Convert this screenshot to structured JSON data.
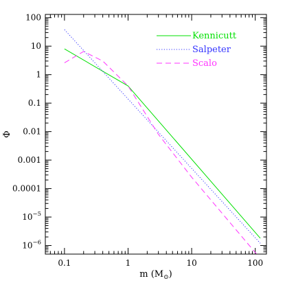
{
  "chart_data": {
    "type": "line",
    "title": "",
    "xlabel": {
      "main": "m (M",
      "subscript": "⊙",
      "close": ")"
    },
    "ylabel": "Φ",
    "xscale": "log",
    "yscale": "log",
    "xlim": [
      0.05,
      150
    ],
    "ylim": [
      5e-07,
      130
    ],
    "grid": false,
    "legend_position": "top-right",
    "x_ticks": [
      {
        "value": 0.1,
        "label": "0.1"
      },
      {
        "value": 1,
        "label": "1"
      },
      {
        "value": 10,
        "label": "10"
      },
      {
        "value": 100,
        "label": "100"
      }
    ],
    "y_ticks": [
      {
        "value": 100,
        "label": "100"
      },
      {
        "value": 10,
        "label": "10"
      },
      {
        "value": 1,
        "label": "1"
      },
      {
        "value": 0.1,
        "label": "0.1"
      },
      {
        "value": 0.01,
        "label": "0.01"
      },
      {
        "value": 0.001,
        "label": "0.001"
      },
      {
        "value": 0.0001,
        "label": "0.0001"
      },
      {
        "value": 1e-05,
        "label": "10",
        "exponent": "−5"
      },
      {
        "value": 1e-06,
        "label": "10",
        "exponent": "−6"
      }
    ],
    "series": [
      {
        "name": "Kennicutt",
        "color": "#00e000",
        "dash": "solid",
        "x": [
          0.1,
          1,
          120
        ],
        "y": [
          8,
          0.4,
          1.8e-06
        ]
      },
      {
        "name": "Salpeter",
        "color": "#3333ff",
        "dash": "dotted",
        "x": [
          0.1,
          120
        ],
        "y": [
          38,
          1.2e-06
        ]
      },
      {
        "name": "Scalo",
        "color": "#ff33ff",
        "dash": "dashed",
        "x": [
          0.1,
          0.2,
          0.4,
          1,
          3,
          10,
          120
        ],
        "y": [
          2.6,
          6.5,
          3.0,
          0.4,
          0.008,
          0.00025,
          3.5e-07
        ]
      }
    ]
  }
}
